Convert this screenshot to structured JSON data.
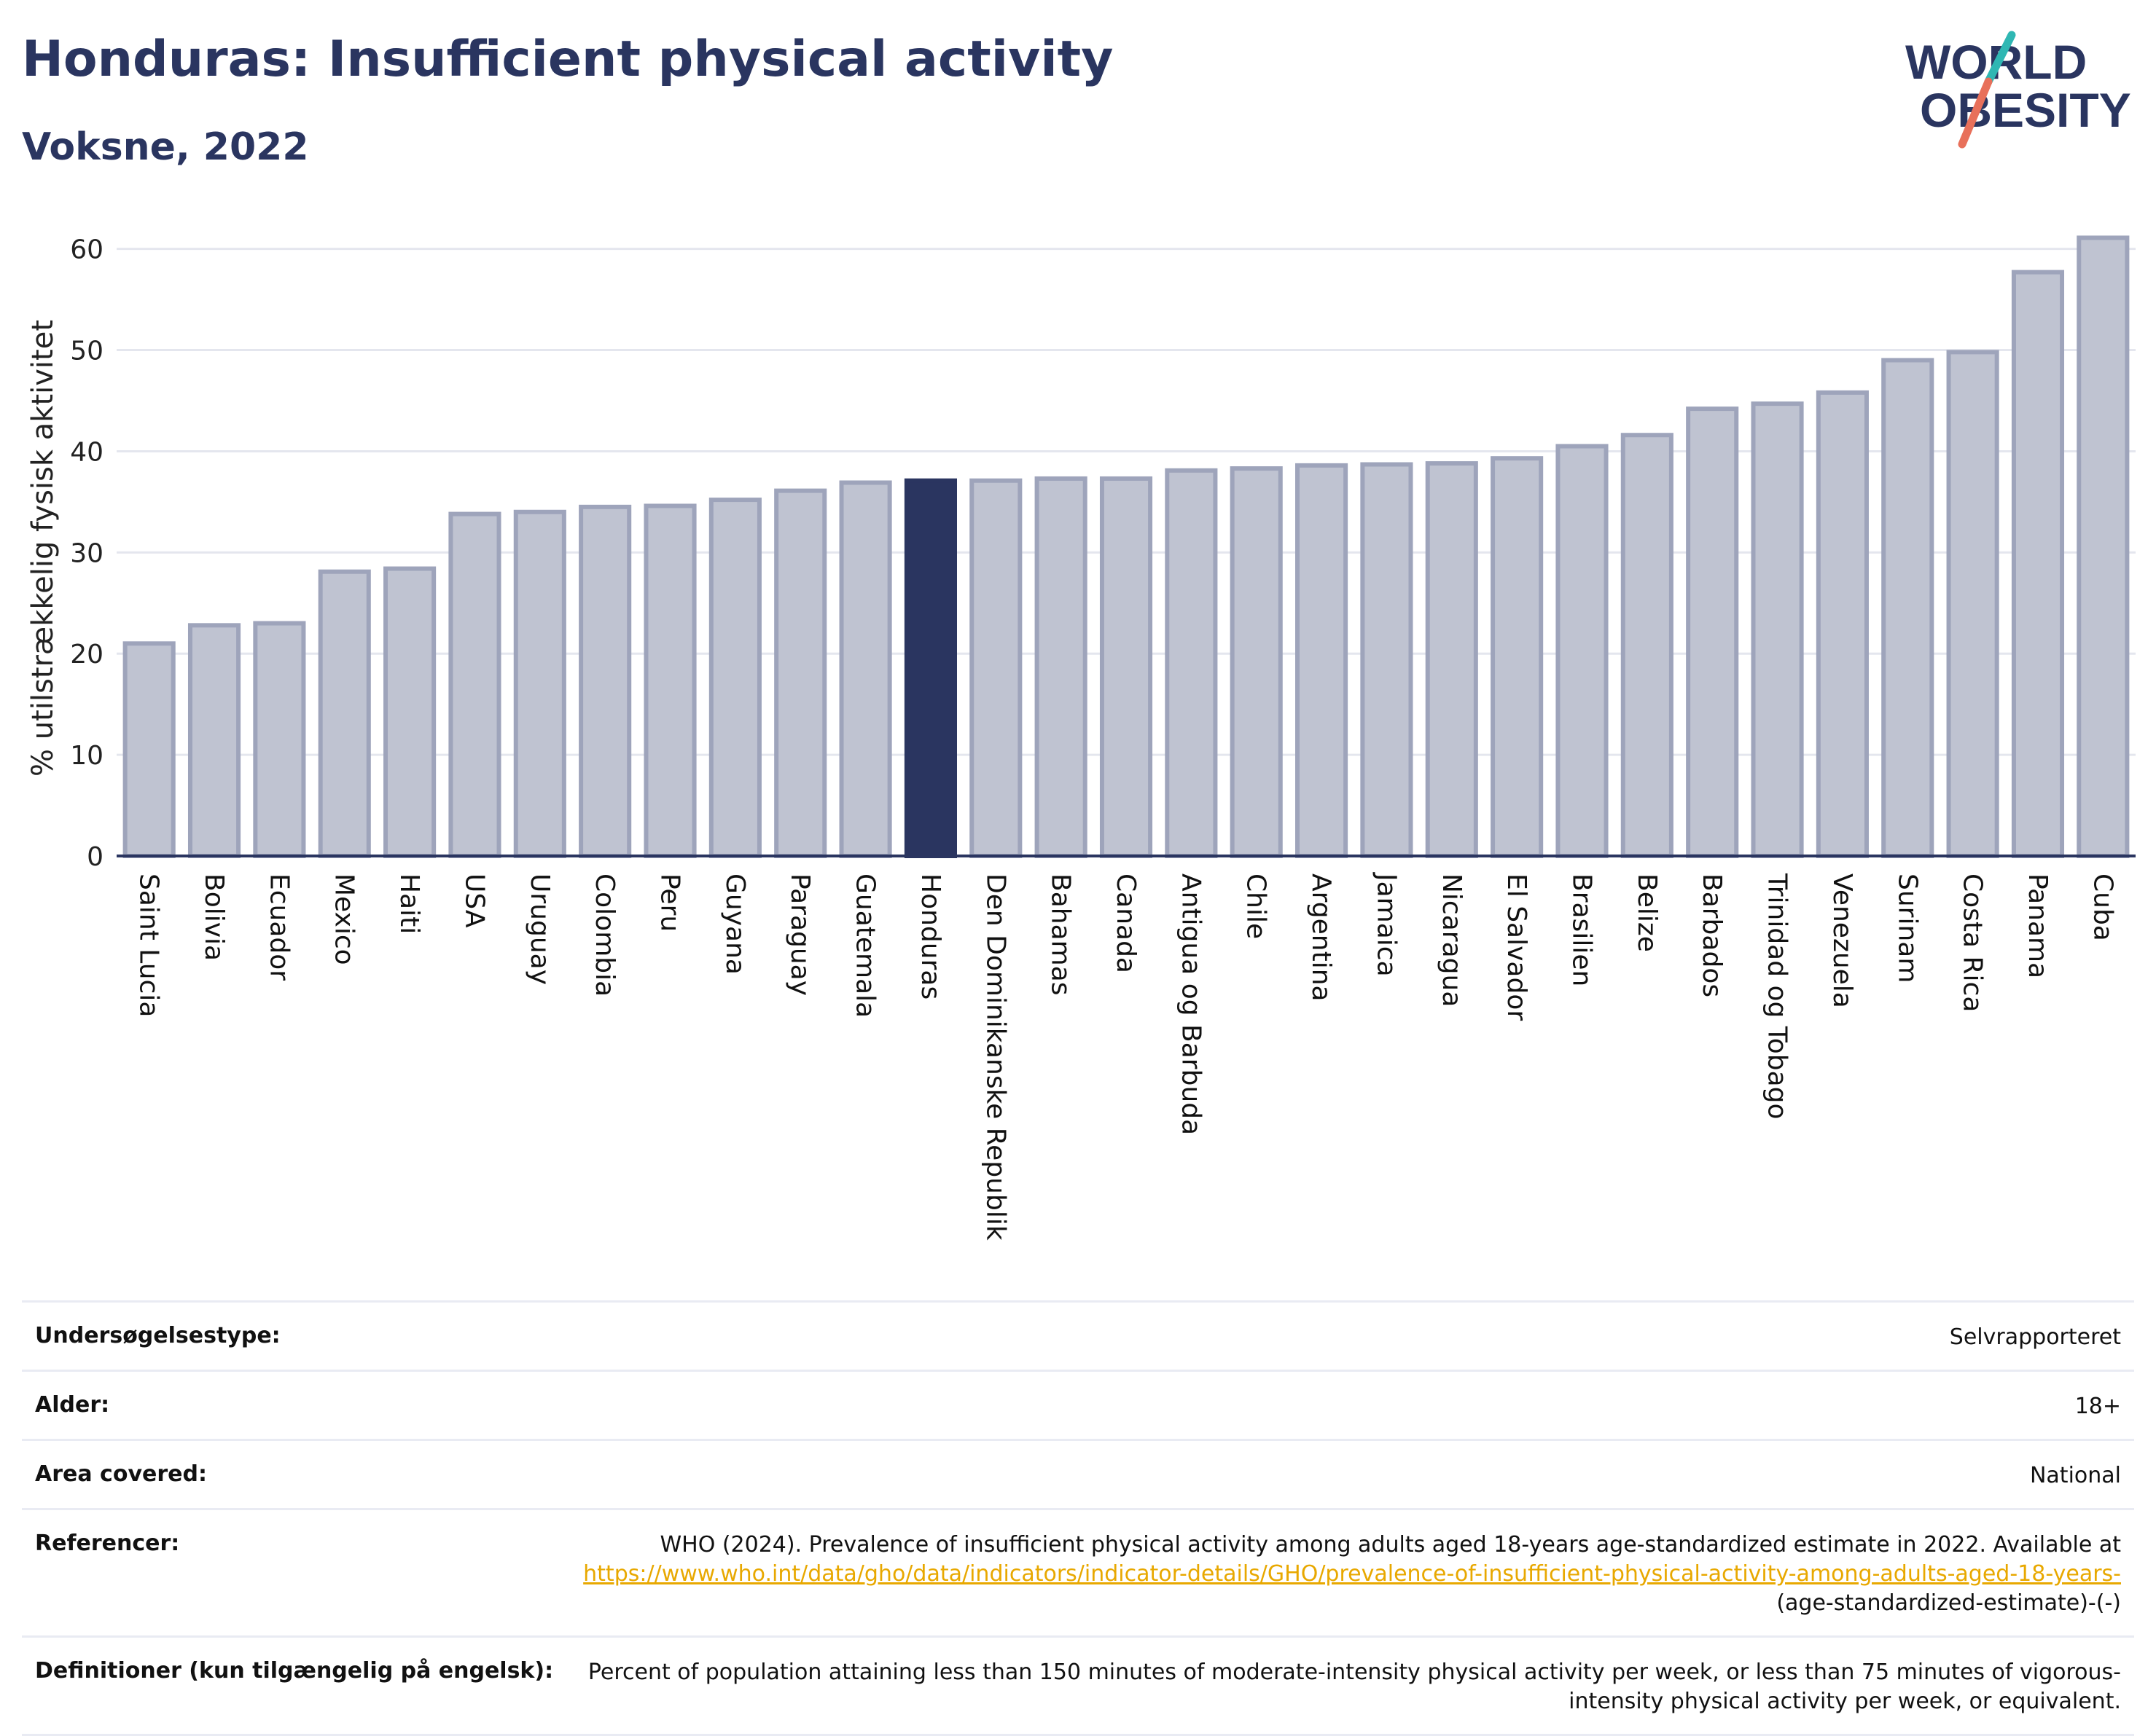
{
  "header": {
    "title": "Honduras: Insufficient physical activity",
    "subtitle": "Voksne, 2022"
  },
  "logo": {
    "line1": "WORLD",
    "line2": "OBESITY",
    "accent_teal": "#2fb7b3",
    "accent_coral": "#e8705a"
  },
  "colors": {
    "bar": "#bfc3d1",
    "bar_border": "#9ea4bb",
    "highlight": "#2a3560",
    "grid": "#e4e6ee",
    "text": "#2a3560"
  },
  "chart_data": {
    "type": "bar",
    "title": "Honduras: Insufficient physical activity",
    "subtitle": "Voksne, 2022",
    "xlabel": "",
    "ylabel": "% utilstrækkelig fysisk aktivitet",
    "ylim": [
      0,
      63
    ],
    "yticks": [
      0,
      10,
      20,
      30,
      40,
      50,
      60
    ],
    "grid": true,
    "highlight": "Honduras",
    "categories": [
      "Saint Lucia",
      "Bolivia",
      "Ecuador",
      "Mexico",
      "Haiti",
      "USA",
      "Uruguay",
      "Colombia",
      "Peru",
      "Guyana",
      "Paraguay",
      "Guatemala",
      "Honduras",
      "Den Dominikanske Republik",
      "Bahamas",
      "Canada",
      "Antigua og Barbuda",
      "Chile",
      "Argentina",
      "Jamaica",
      "Nicaragua",
      "El Salvador",
      "Brasilien",
      "Belize",
      "Barbados",
      "Trinidad og Tobago",
      "Venezuela",
      "Surinam",
      "Costa Rica",
      "Panama",
      "Cuba"
    ],
    "values": [
      21.0,
      22.8,
      23.0,
      28.1,
      28.4,
      33.8,
      34.0,
      34.5,
      34.6,
      35.2,
      36.1,
      36.9,
      37.1,
      37.1,
      37.3,
      37.3,
      38.1,
      38.3,
      38.6,
      38.7,
      38.8,
      39.3,
      40.5,
      41.6,
      44.2,
      44.7,
      45.8,
      49.0,
      49.8,
      57.7,
      61.1
    ]
  },
  "meta": {
    "rows": [
      {
        "label": "Undersøgelsestype:",
        "value": "Selvrapporteret"
      },
      {
        "label": "Alder:",
        "value": "18+"
      },
      {
        "label": "Area covered:",
        "value": "National"
      }
    ],
    "reference": {
      "label": "Referencer:",
      "text": "WHO (2024). Prevalence of insufficient physical activity among adults aged 18-years age-standardized estimate in 2022. Available at",
      "link": "https://www.who.int/data/gho/data/indicators/indicator-details/GHO/prevalence-of-insufficient-physical-activity-among-adults-aged-18-years-",
      "tail": "(age-standardized-estimate)-(-)"
    },
    "definition": {
      "label": "Definitioner (kun tilgængelig på engelsk):",
      "value": "Percent of population attaining less than 150 minutes of moderate-intensity physical activity per week, or less than 75 minutes of vigorous-intensity physical activity per week, or equivalent."
    }
  }
}
